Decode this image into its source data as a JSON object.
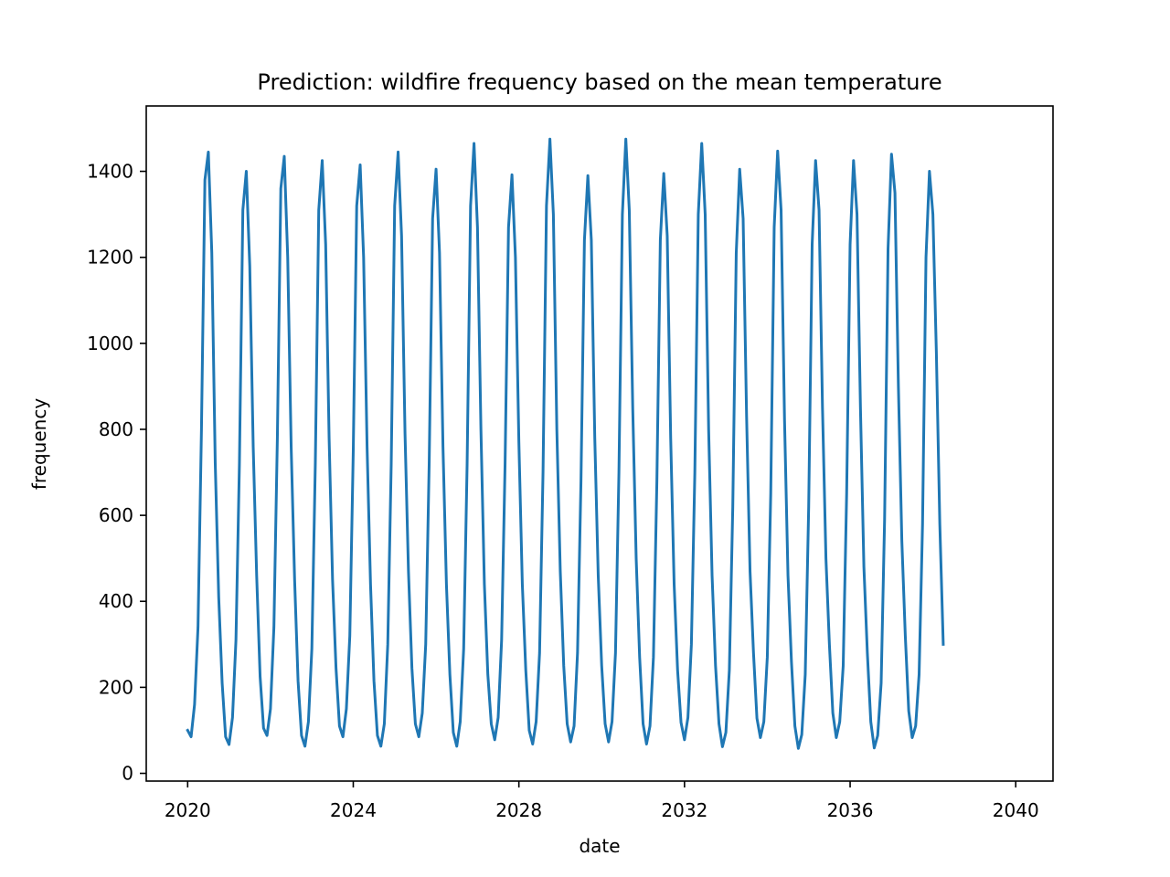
{
  "chart_data": {
    "type": "line",
    "title": "Prediction: wildfire frequency based on the mean temperature",
    "xlabel": "date",
    "ylabel": "frequency",
    "xlim": [
      2019.0,
      2040.9
    ],
    "ylim": [
      -18,
      1552
    ],
    "x_ticks": [
      2020,
      2024,
      2028,
      2032,
      2036,
      2040
    ],
    "x_tick_labels": [
      "2020",
      "2024",
      "2028",
      "2032",
      "2036",
      "2040"
    ],
    "y_ticks": [
      0,
      200,
      400,
      600,
      800,
      1000,
      1200,
      1400
    ],
    "y_tick_labels": [
      "0",
      "200",
      "400",
      "600",
      "800",
      "1000",
      "1200",
      "1400"
    ],
    "grid": false,
    "legend": "none",
    "line_color": "#1f77b4",
    "x_start": 2020.0,
    "x_step_years": 0.08333,
    "series": [
      {
        "values": [
          100,
          85,
          160,
          340,
          800,
          1380,
          1445,
          1210,
          720,
          410,
          210,
          85,
          67,
          130,
          310,
          720,
          1310,
          1400,
          1180,
          760,
          460,
          225,
          105,
          88,
          150,
          340,
          780,
          1360,
          1435,
          1200,
          760,
          450,
          215,
          88,
          63,
          120,
          290,
          720,
          1310,
          1425,
          1230,
          780,
          450,
          245,
          110,
          85,
          150,
          320,
          750,
          1320,
          1415,
          1200,
          760,
          440,
          215,
          88,
          63,
          115,
          300,
          720,
          1320,
          1445,
          1250,
          790,
          470,
          245,
          115,
          85,
          140,
          300,
          720,
          1290,
          1405,
          1210,
          760,
          440,
          230,
          95,
          63,
          120,
          290,
          720,
          1320,
          1465,
          1270,
          800,
          440,
          230,
          115,
          78,
          130,
          310,
          720,
          1270,
          1392,
          1200,
          770,
          440,
          240,
          100,
          68,
          120,
          280,
          700,
          1320,
          1475,
          1300,
          800,
          470,
          250,
          115,
          73,
          110,
          280,
          680,
          1240,
          1390,
          1240,
          780,
          460,
          250,
          115,
          73,
          120,
          280,
          700,
          1300,
          1475,
          1310,
          850,
          500,
          270,
          115,
          68,
          110,
          270,
          680,
          1240,
          1395,
          1250,
          780,
          440,
          240,
          118,
          78,
          130,
          300,
          700,
          1300,
          1465,
          1300,
          800,
          460,
          250,
          115,
          62,
          95,
          240,
          620,
          1210,
          1405,
          1290,
          830,
          470,
          280,
          128,
          83,
          120,
          270,
          650,
          1270,
          1447,
          1310,
          820,
          460,
          260,
          110,
          58,
          90,
          230,
          620,
          1230,
          1425,
          1310,
          850,
          500,
          300,
          140,
          83,
          120,
          250,
          650,
          1230,
          1425,
          1300,
          850,
          480,
          280,
          120,
          59,
          88,
          210,
          590,
          1220,
          1440,
          1350,
          900,
          540,
          320,
          145,
          83,
          110,
          230,
          580,
          1200,
          1400,
          1300,
          980,
          580,
          300
        ]
      }
    ]
  }
}
